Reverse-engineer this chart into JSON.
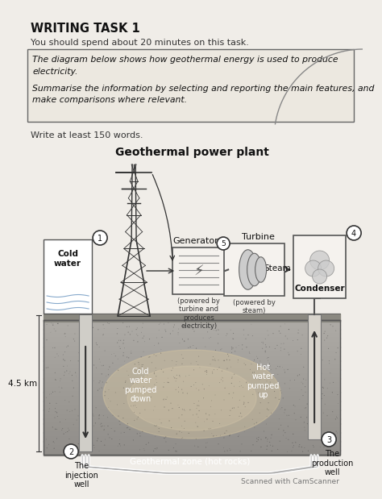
{
  "page_color": "#f0ede8",
  "title": "WRITING TASK 1",
  "subtitle": "You should spend about 20 minutes on this task.",
  "task_line1": "The diagram below shows how geothermal energy is used to produce",
  "task_line2": "electricity.",
  "task_line3": "Summarise the information by selecting and reporting the main features, and",
  "task_line4": "make comparisons where relevant.",
  "write_note": "Write at least 150 words.",
  "diagram_title": "Geothermal power plant",
  "label1": "Cold\nwater",
  "label2_a": "The",
  "label2_b": "injection",
  "label2_c": "well",
  "label3_a": "The",
  "label3_b": "production",
  "label3_c": "well",
  "label4": "Condenser",
  "label_gen": "Generator",
  "label_tur": "Turbine",
  "label_steam": "Steam",
  "label_gen_sub": "(powered by\nturbine and\nproduces\nelectricity)",
  "label_tur_sub": "(powered by\nsteam)",
  "label_cold_down": "Cold\nwater\npumped\ndown",
  "label_hot_up": "Hot\nwater\npumped\nup",
  "label_geo": "Geothermal zone (hot rocks)",
  "label_km": "4.5 km",
  "scanned": "Scanned with CamScanner",
  "ground_dark": "#8a8680",
  "ground_light": "#b8b0a0",
  "glow_color": "#d4c4a0"
}
